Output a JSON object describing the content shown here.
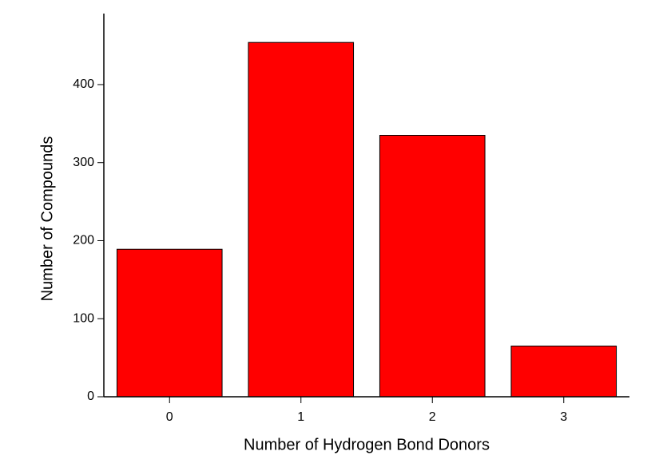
{
  "chart_data": {
    "type": "bar",
    "x_label": "Number of Hydrogen Bond Donors",
    "y_label": "Number of Compounds",
    "categories": [
      "0",
      "1",
      "2",
      "3"
    ],
    "values": [
      189,
      454,
      335,
      65
    ],
    "color": "#ff0000",
    "ylim": [
      0,
      491
    ],
    "yticks": [
      0,
      100,
      200,
      300,
      400
    ]
  }
}
